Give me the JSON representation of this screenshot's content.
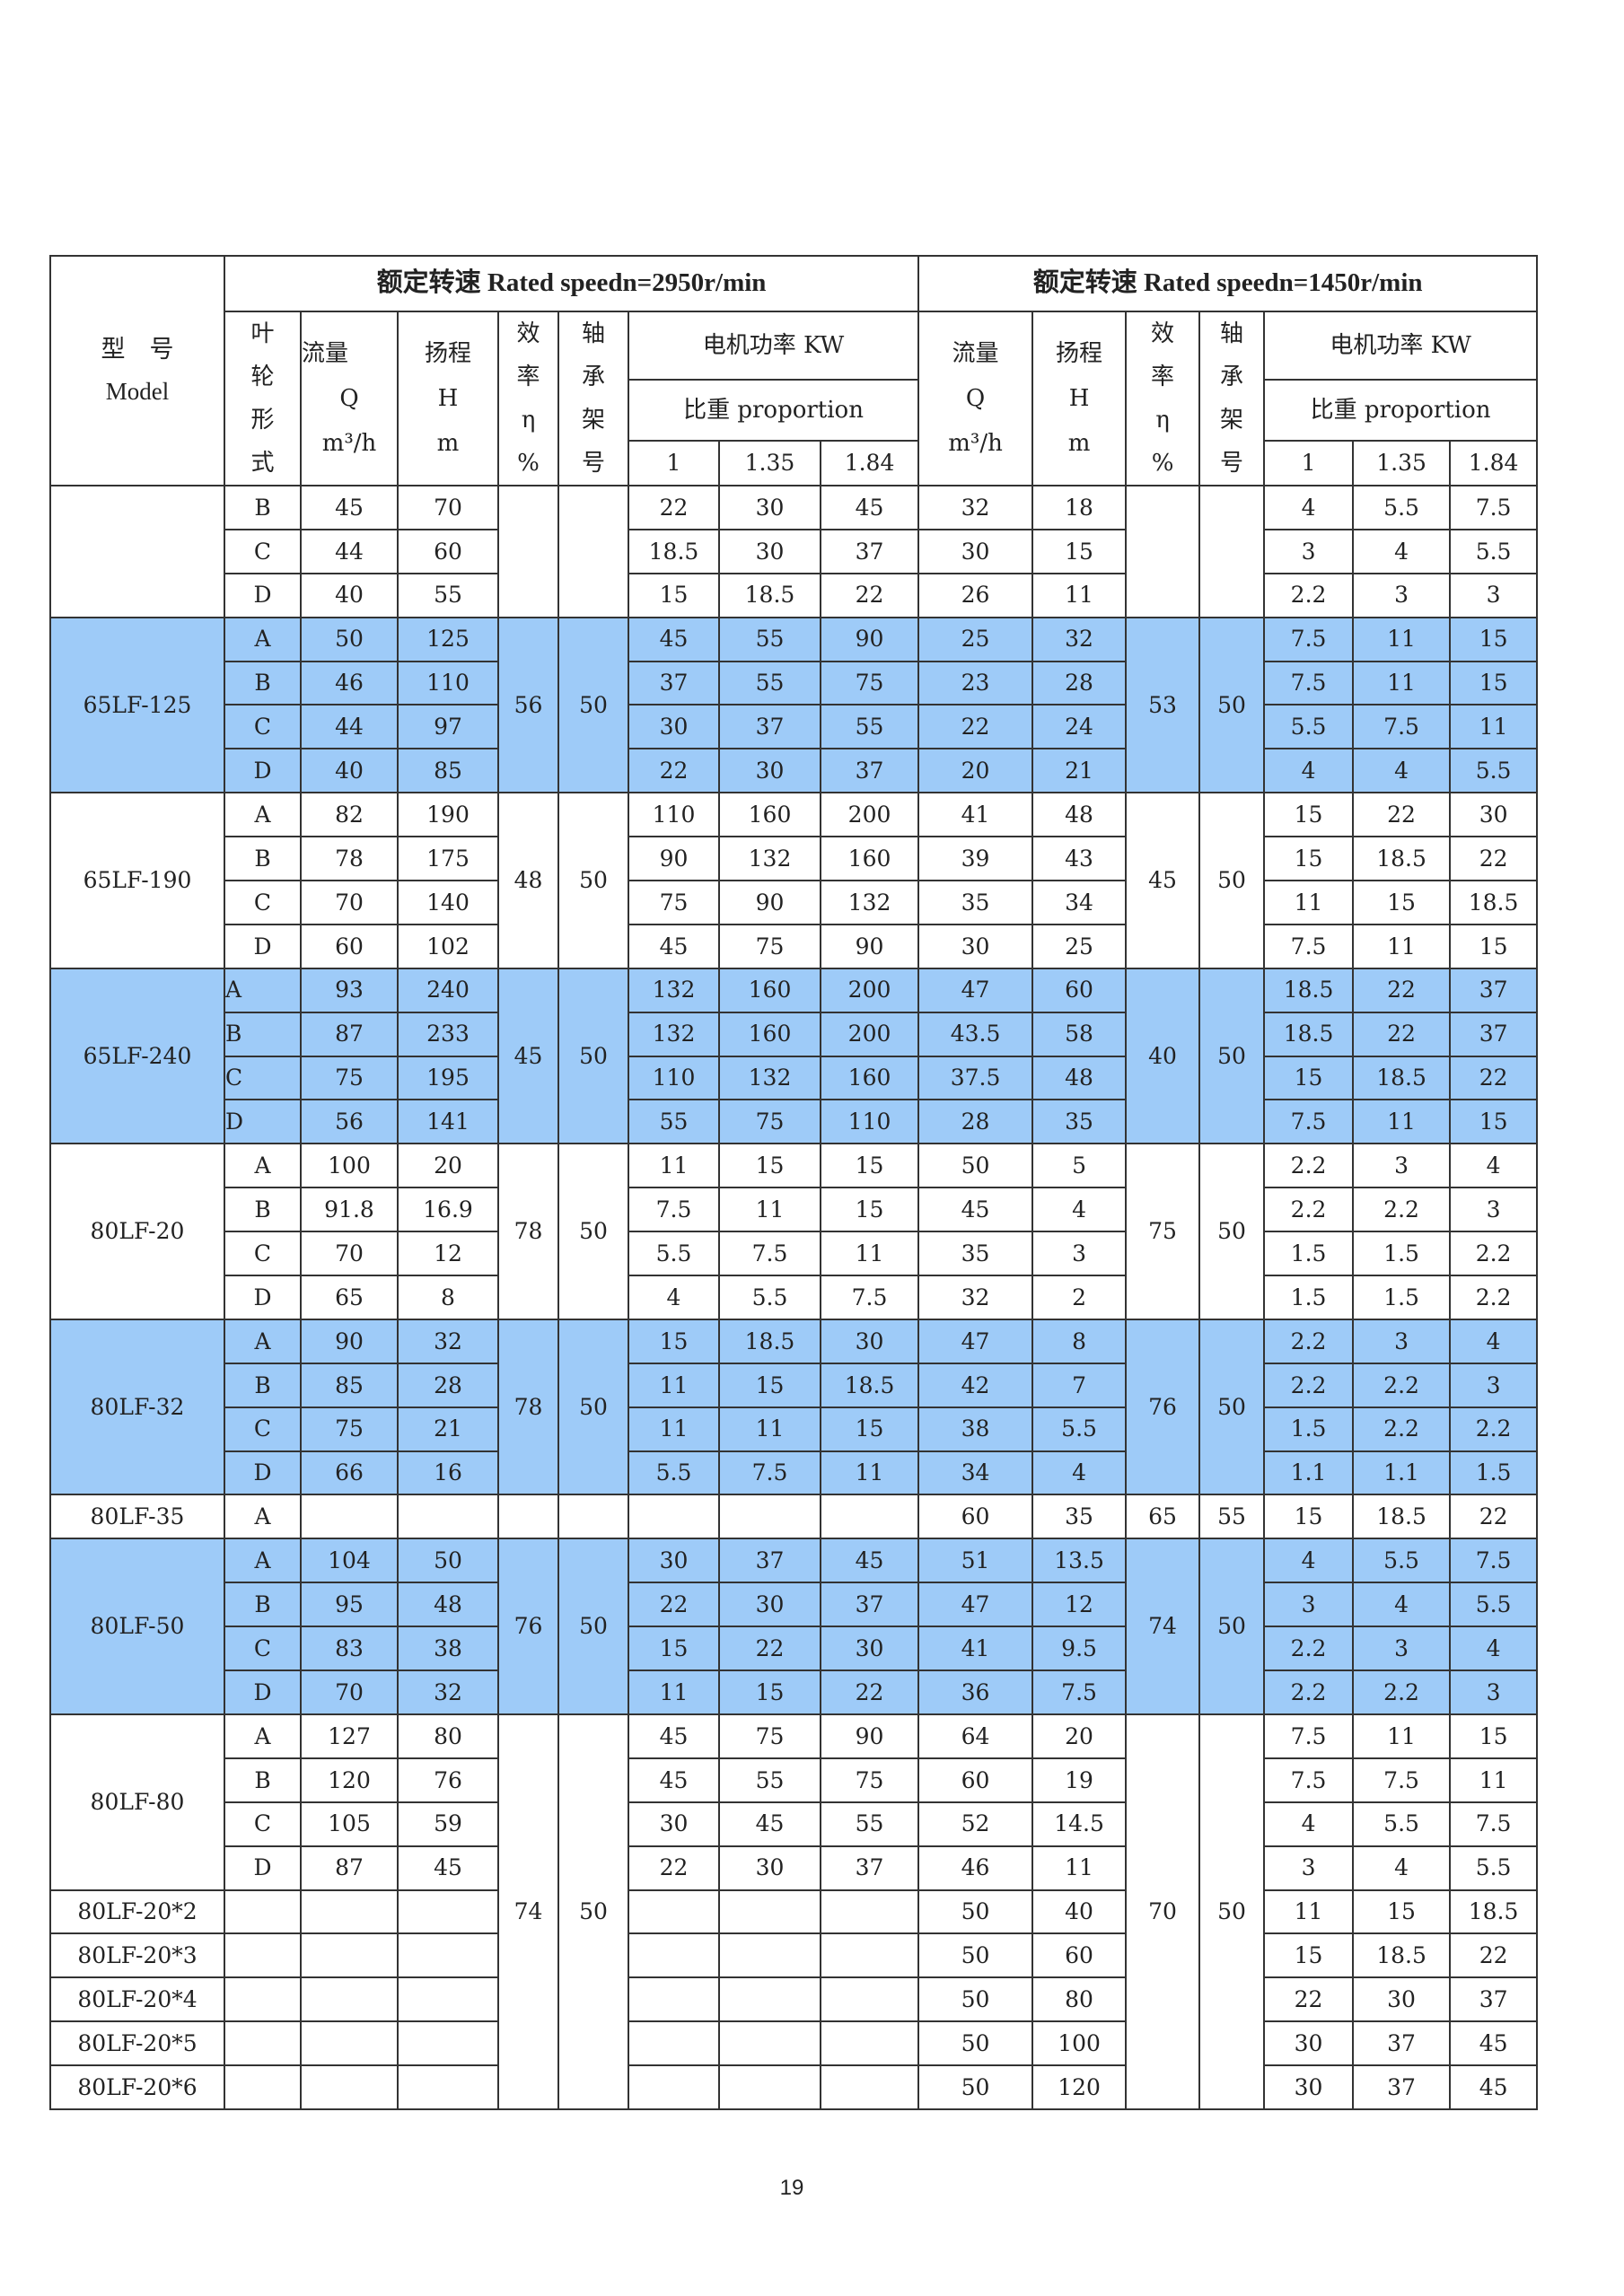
{
  "header": {
    "model_cn": "型　号",
    "model_en": "Model",
    "speed_2950": "额定转速 Rated speedn=2950r/min",
    "speed_1450": "额定转速 Rated speedn=1450r/min",
    "impeller_type": [
      "叶",
      "轮",
      "形",
      "式"
    ],
    "flow": "流量",
    "flow_symbol": "Q",
    "flow_unit": "m³/h",
    "head": "扬程",
    "head_symbol": "H",
    "head_unit": "m",
    "efficiency": [
      "效",
      "率",
      "η",
      "%"
    ],
    "bearing": [
      "轴",
      "承",
      "架",
      "号"
    ],
    "motor_power": "电机功率 KW",
    "proportion": "比重 proportion",
    "proportions": [
      "1",
      "1.35",
      "1.84"
    ]
  },
  "colors": {
    "highlight": "#9ecbf8",
    "border": "#333333"
  },
  "blocks": [
    {
      "highlight": false,
      "eta_2950": "",
      "bearing_2950": "",
      "eta_1450": "",
      "bearing_1450": "",
      "models": [
        {
          "name": "",
          "rows": [
            [
              "B",
              "45",
              "70",
              "22",
              "30",
              "45",
              "32",
              "18",
              "4",
              "5.5",
              "7.5"
            ],
            [
              "C",
              "44",
              "60",
              "18.5",
              "30",
              "37",
              "30",
              "15",
              "3",
              "4",
              "5.5"
            ],
            [
              "D",
              "40",
              "55",
              "15",
              "18.5",
              "22",
              "26",
              "11",
              "2.2",
              "3",
              "3"
            ]
          ]
        }
      ]
    },
    {
      "highlight": true,
      "eta_2950": "56",
      "bearing_2950": "50",
      "eta_1450": "53",
      "bearing_1450": "50",
      "models": [
        {
          "name": "65LF-125",
          "rows": [
            [
              "A",
              "50",
              "125",
              "45",
              "55",
              "90",
              "25",
              "32",
              "7.5",
              "11",
              "15"
            ],
            [
              "B",
              "46",
              "110",
              "37",
              "55",
              "75",
              "23",
              "28",
              "7.5",
              "11",
              "15"
            ],
            [
              "C",
              "44",
              "97",
              "30",
              "37",
              "55",
              "22",
              "24",
              "5.5",
              "7.5",
              "11"
            ],
            [
              "D",
              "40",
              "85",
              "22",
              "30",
              "37",
              "20",
              "21",
              "4",
              "4",
              "5.5"
            ]
          ]
        }
      ]
    },
    {
      "highlight": false,
      "eta_2950": "48",
      "bearing_2950": "50",
      "eta_1450": "45",
      "bearing_1450": "50",
      "models": [
        {
          "name": "65LF-190",
          "rows": [
            [
              "A",
              "82",
              "190",
              "110",
              "160",
              "200",
              "41",
              "48",
              "15",
              "22",
              "30"
            ],
            [
              "B",
              "78",
              "175",
              "90",
              "132",
              "160",
              "39",
              "43",
              "15",
              "18.5",
              "22"
            ],
            [
              "C",
              "70",
              "140",
              "75",
              "90",
              "132",
              "35",
              "34",
              "11",
              "15",
              "18.5"
            ],
            [
              "D",
              "60",
              "102",
              "45",
              "75",
              "90",
              "30",
              "25",
              "7.5",
              "11",
              "15"
            ]
          ]
        }
      ]
    },
    {
      "highlight": true,
      "eta_2950": "45",
      "bearing_2950": "50",
      "eta_1450": "40",
      "bearing_1450": "50",
      "models": [
        {
          "name": "65LF-240",
          "rows": [
            [
              "A",
              "93",
              "240",
              "132",
              "160",
              "200",
              "47",
              "60",
              "18.5",
              "22",
              "37"
            ],
            [
              "B",
              "87",
              "233",
              "132",
              "160",
              "200",
              "43.5",
              "58",
              "18.5",
              "22",
              "37"
            ],
            [
              "C",
              "75",
              "195",
              "110",
              "132",
              "160",
              "37.5",
              "48",
              "15",
              "18.5",
              "22"
            ],
            [
              "D",
              "56",
              "141",
              "55",
              "75",
              "110",
              "28",
              "35",
              "7.5",
              "11",
              "15"
            ]
          ]
        }
      ]
    },
    {
      "highlight": false,
      "eta_2950": "78",
      "bearing_2950": "50",
      "eta_1450": "75",
      "bearing_1450": "50",
      "models": [
        {
          "name": "80LF-20",
          "rows": [
            [
              "A",
              "100",
              "20",
              "11",
              "15",
              "15",
              "50",
              "5",
              "2.2",
              "3",
              "4"
            ],
            [
              "B",
              "91.8",
              "16.9",
              "7.5",
              "11",
              "15",
              "45",
              "4",
              "2.2",
              "2.2",
              "3"
            ],
            [
              "C",
              "70",
              "12",
              "5.5",
              "7.5",
              "11",
              "35",
              "3",
              "1.5",
              "1.5",
              "2.2"
            ],
            [
              "D",
              "65",
              "8",
              "4",
              "5.5",
              "7.5",
              "32",
              "2",
              "1.5",
              "1.5",
              "2.2"
            ]
          ]
        }
      ]
    },
    {
      "highlight": true,
      "eta_2950": "78",
      "bearing_2950": "50",
      "eta_1450": "76",
      "bearing_1450": "50",
      "models": [
        {
          "name": "80LF-32",
          "rows": [
            [
              "A",
              "90",
              "32",
              "15",
              "18.5",
              "30",
              "47",
              "8",
              "2.2",
              "3",
              "4"
            ],
            [
              "B",
              "85",
              "28",
              "11",
              "15",
              "18.5",
              "42",
              "7",
              "2.2",
              "2.2",
              "3"
            ],
            [
              "C",
              "75",
              "21",
              "11",
              "11",
              "15",
              "38",
              "5.5",
              "1.5",
              "2.2",
              "2.2"
            ],
            [
              "D",
              "66",
              "16",
              "5.5",
              "7.5",
              "11",
              "34",
              "4",
              "1.1",
              "1.1",
              "1.5"
            ]
          ]
        }
      ]
    },
    {
      "highlight": false,
      "eta_2950": "",
      "bearing_2950": "",
      "eta_1450": "65",
      "bearing_1450": "55",
      "models": [
        {
          "name": "80LF-35",
          "rows": [
            [
              "A",
              "",
              "",
              "",
              "",
              "",
              "60",
              "35",
              "15",
              "18.5",
              "22"
            ]
          ]
        }
      ]
    },
    {
      "highlight": true,
      "eta_2950": "76",
      "bearing_2950": "50",
      "eta_1450": "74",
      "bearing_1450": "50",
      "models": [
        {
          "name": "80LF-50",
          "rows": [
            [
              "A",
              "104",
              "50",
              "30",
              "37",
              "45",
              "51",
              "13.5",
              "4",
              "5.5",
              "7.5"
            ],
            [
              "B",
              "95",
              "48",
              "22",
              "30",
              "37",
              "47",
              "12",
              "3",
              "4",
              "5.5"
            ],
            [
              "C",
              "83",
              "38",
              "15",
              "22",
              "30",
              "41",
              "9.5",
              "2.2",
              "3",
              "4"
            ],
            [
              "D",
              "70",
              "32",
              "11",
              "15",
              "22",
              "36",
              "7.5",
              "2.2",
              "2.2",
              "3"
            ]
          ]
        }
      ]
    },
    {
      "highlight": false,
      "eta_2950": "74",
      "bearing_2950": "50",
      "eta_1450": "70",
      "bearing_1450": "50",
      "models": [
        {
          "name": "80LF-80",
          "rows": [
            [
              "A",
              "127",
              "80",
              "45",
              "75",
              "90",
              "64",
              "20",
              "7.5",
              "11",
              "15"
            ],
            [
              "B",
              "120",
              "76",
              "45",
              "55",
              "75",
              "60",
              "19",
              "7.5",
              "7.5",
              "11"
            ],
            [
              "C",
              "105",
              "59",
              "30",
              "45",
              "55",
              "52",
              "14.5",
              "4",
              "5.5",
              "7.5"
            ],
            [
              "D",
              "87",
              "45",
              "22",
              "30",
              "37",
              "46",
              "11",
              "3",
              "4",
              "5.5"
            ]
          ]
        },
        {
          "name": "80LF-20*2",
          "rows": [
            [
              "",
              "",
              "",
              "",
              "",
              "",
              "50",
              "40",
              "11",
              "15",
              "18.5"
            ]
          ]
        },
        {
          "name": "80LF-20*3",
          "rows": [
            [
              "",
              "",
              "",
              "",
              "",
              "",
              "50",
              "60",
              "15",
              "18.5",
              "22"
            ]
          ]
        },
        {
          "name": "80LF-20*4",
          "rows": [
            [
              "",
              "",
              "",
              "",
              "",
              "",
              "50",
              "80",
              "22",
              "30",
              "37"
            ]
          ]
        },
        {
          "name": "80LF-20*5",
          "rows": [
            [
              "",
              "",
              "",
              "",
              "",
              "",
              "50",
              "100",
              "30",
              "37",
              "45"
            ]
          ]
        },
        {
          "name": "80LF-20*6",
          "rows": [
            [
              "",
              "",
              "",
              "",
              "",
              "",
              "50",
              "120",
              "30",
              "37",
              "45"
            ]
          ]
        }
      ]
    }
  ],
  "page_number": "19"
}
